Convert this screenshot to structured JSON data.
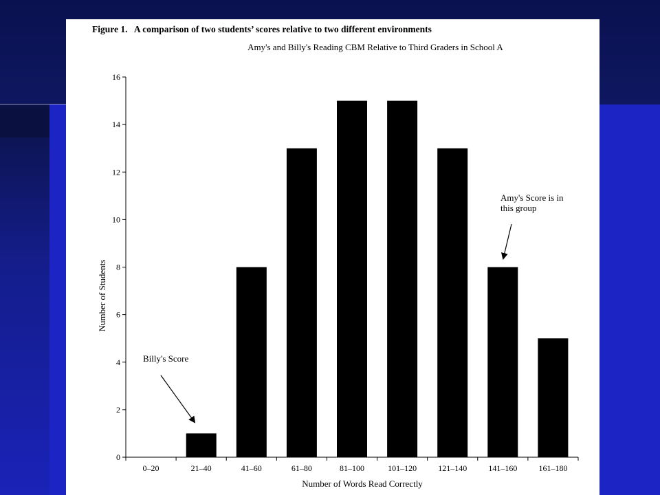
{
  "slide": {
    "background_colors": {
      "main": "#1c24c4",
      "dark": "#0a1150"
    }
  },
  "figure": {
    "label": "Figure 1.",
    "caption": "A comparison of two students’ scores relative to two different environments"
  },
  "chart_data": {
    "type": "bar",
    "title": "Amy's and Billy's Reading CBM Relative to Third Graders in School A",
    "xlabel": "Number of Words Read Correctly",
    "ylabel": "Number of Students",
    "categories": [
      "0–20",
      "21–40",
      "41–60",
      "61–80",
      "81–100",
      "101–120",
      "121–140",
      "141–160",
      "161–180"
    ],
    "values": [
      0,
      1,
      8,
      13,
      15,
      15,
      13,
      8,
      5
    ],
    "ylim": [
      0,
      16
    ],
    "yticks": [
      0,
      2,
      4,
      6,
      8,
      10,
      12,
      14,
      16
    ],
    "bar_color": "#000000",
    "grid": false,
    "legend": "none",
    "annotations": [
      {
        "lines": [
          "Billy's Score"
        ],
        "category": "21–40"
      },
      {
        "lines": [
          "Amy's Score is in",
          "this group"
        ],
        "category": "141–160"
      }
    ]
  }
}
